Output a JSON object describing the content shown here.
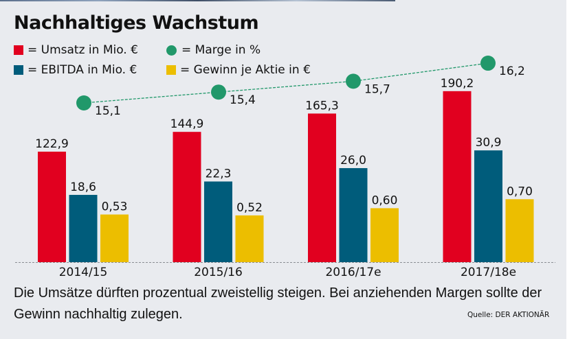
{
  "title": "Nachhaltiges Wachstum",
  "legend": [
    {
      "label": "= Umsatz in Mio. €",
      "marker": "square",
      "color": "#e1001f"
    },
    {
      "label": "= Marge in %",
      "marker": "circle",
      "color": "#21986a"
    },
    {
      "label": "= EBITDA in Mio. €",
      "marker": "square",
      "color": "#005c7b"
    },
    {
      "label": "= Gewinn je Aktie in €",
      "marker": "square",
      "color": "#ecbe00"
    }
  ],
  "caption": "Die Umsätze dürften prozentual zweistellig steigen. Bei anziehenden Margen sollte der Gewinn nachhaltig zulegen.",
  "source": "Quelle: DER AKTIONÄR",
  "chart_data": {
    "type": "bar",
    "title": "Nachhaltiges Wachstum",
    "xlabel": "",
    "ylabel": "",
    "grid": false,
    "legend_position": "top-left",
    "categories": [
      "2014/15",
      "2015/16",
      "2016/17e",
      "2017/18e"
    ],
    "series": [
      {
        "name": "Umsatz in Mio. €",
        "type": "bar",
        "color": "#e1001f",
        "values": [
          122.9,
          144.9,
          165.3,
          190.2
        ],
        "labels": [
          "122,9",
          "144,9",
          "165,3",
          "190,2"
        ]
      },
      {
        "name": "EBITDA in Mio. €",
        "type": "bar",
        "color": "#005c7b",
        "values": [
          18.6,
          22.3,
          26.0,
          30.9
        ],
        "labels": [
          "18,6",
          "22,3",
          "26,0",
          "30,9"
        ]
      },
      {
        "name": "Gewinn je Aktie in €",
        "type": "bar",
        "color": "#ecbe00",
        "values": [
          0.53,
          0.52,
          0.6,
          0.7
        ],
        "labels": [
          "0,53",
          "0,52",
          "0,60",
          "0,70"
        ]
      },
      {
        "name": "Marge in %",
        "type": "line",
        "style": "dashed",
        "color": "#21986a",
        "values": [
          15.1,
          15.4,
          15.7,
          16.2
        ],
        "labels": [
          "15,1",
          "15,4",
          "15,7",
          "16,2"
        ]
      }
    ]
  }
}
